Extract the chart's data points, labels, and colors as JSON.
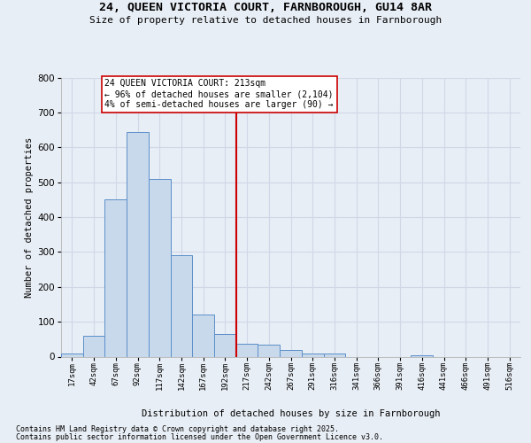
{
  "title_line1": "24, QUEEN VICTORIA COURT, FARNBOROUGH, GU14 8AR",
  "title_line2": "Size of property relative to detached houses in Farnborough",
  "xlabel": "Distribution of detached houses by size in Farnborough",
  "ylabel": "Number of detached properties",
  "bar_labels": [
    "17sqm",
    "42sqm",
    "67sqm",
    "92sqm",
    "117sqm",
    "142sqm",
    "167sqm",
    "192sqm",
    "217sqm",
    "242sqm",
    "267sqm",
    "291sqm",
    "316sqm",
    "341sqm",
    "366sqm",
    "391sqm",
    "416sqm",
    "441sqm",
    "466sqm",
    "491sqm",
    "516sqm"
  ],
  "bar_values": [
    10,
    60,
    450,
    645,
    510,
    290,
    120,
    65,
    38,
    35,
    20,
    10,
    8,
    0,
    0,
    0,
    5,
    0,
    0,
    0,
    0
  ],
  "bar_color": "#c9d9ec",
  "bar_edge_color": "#5b8fc9",
  "vline_index": 8,
  "vline_color": "#cc0000",
  "annotation_title": "24 QUEEN VICTORIA COURT: 213sqm",
  "annotation_line2": "← 96% of detached houses are smaller (2,104)",
  "annotation_line3": "4% of semi-detached houses are larger (90) →",
  "annotation_box_color": "#ffffff",
  "annotation_box_edge": "#cc0000",
  "ylim": [
    0,
    800
  ],
  "yticks": [
    0,
    100,
    200,
    300,
    400,
    500,
    600,
    700,
    800
  ],
  "background_color": "#e8eef5",
  "grid_color": "#d0d8e8",
  "footnote_line1": "Contains HM Land Registry data © Crown copyright and database right 2025.",
  "footnote_line2": "Contains public sector information licensed under the Open Government Licence v3.0."
}
